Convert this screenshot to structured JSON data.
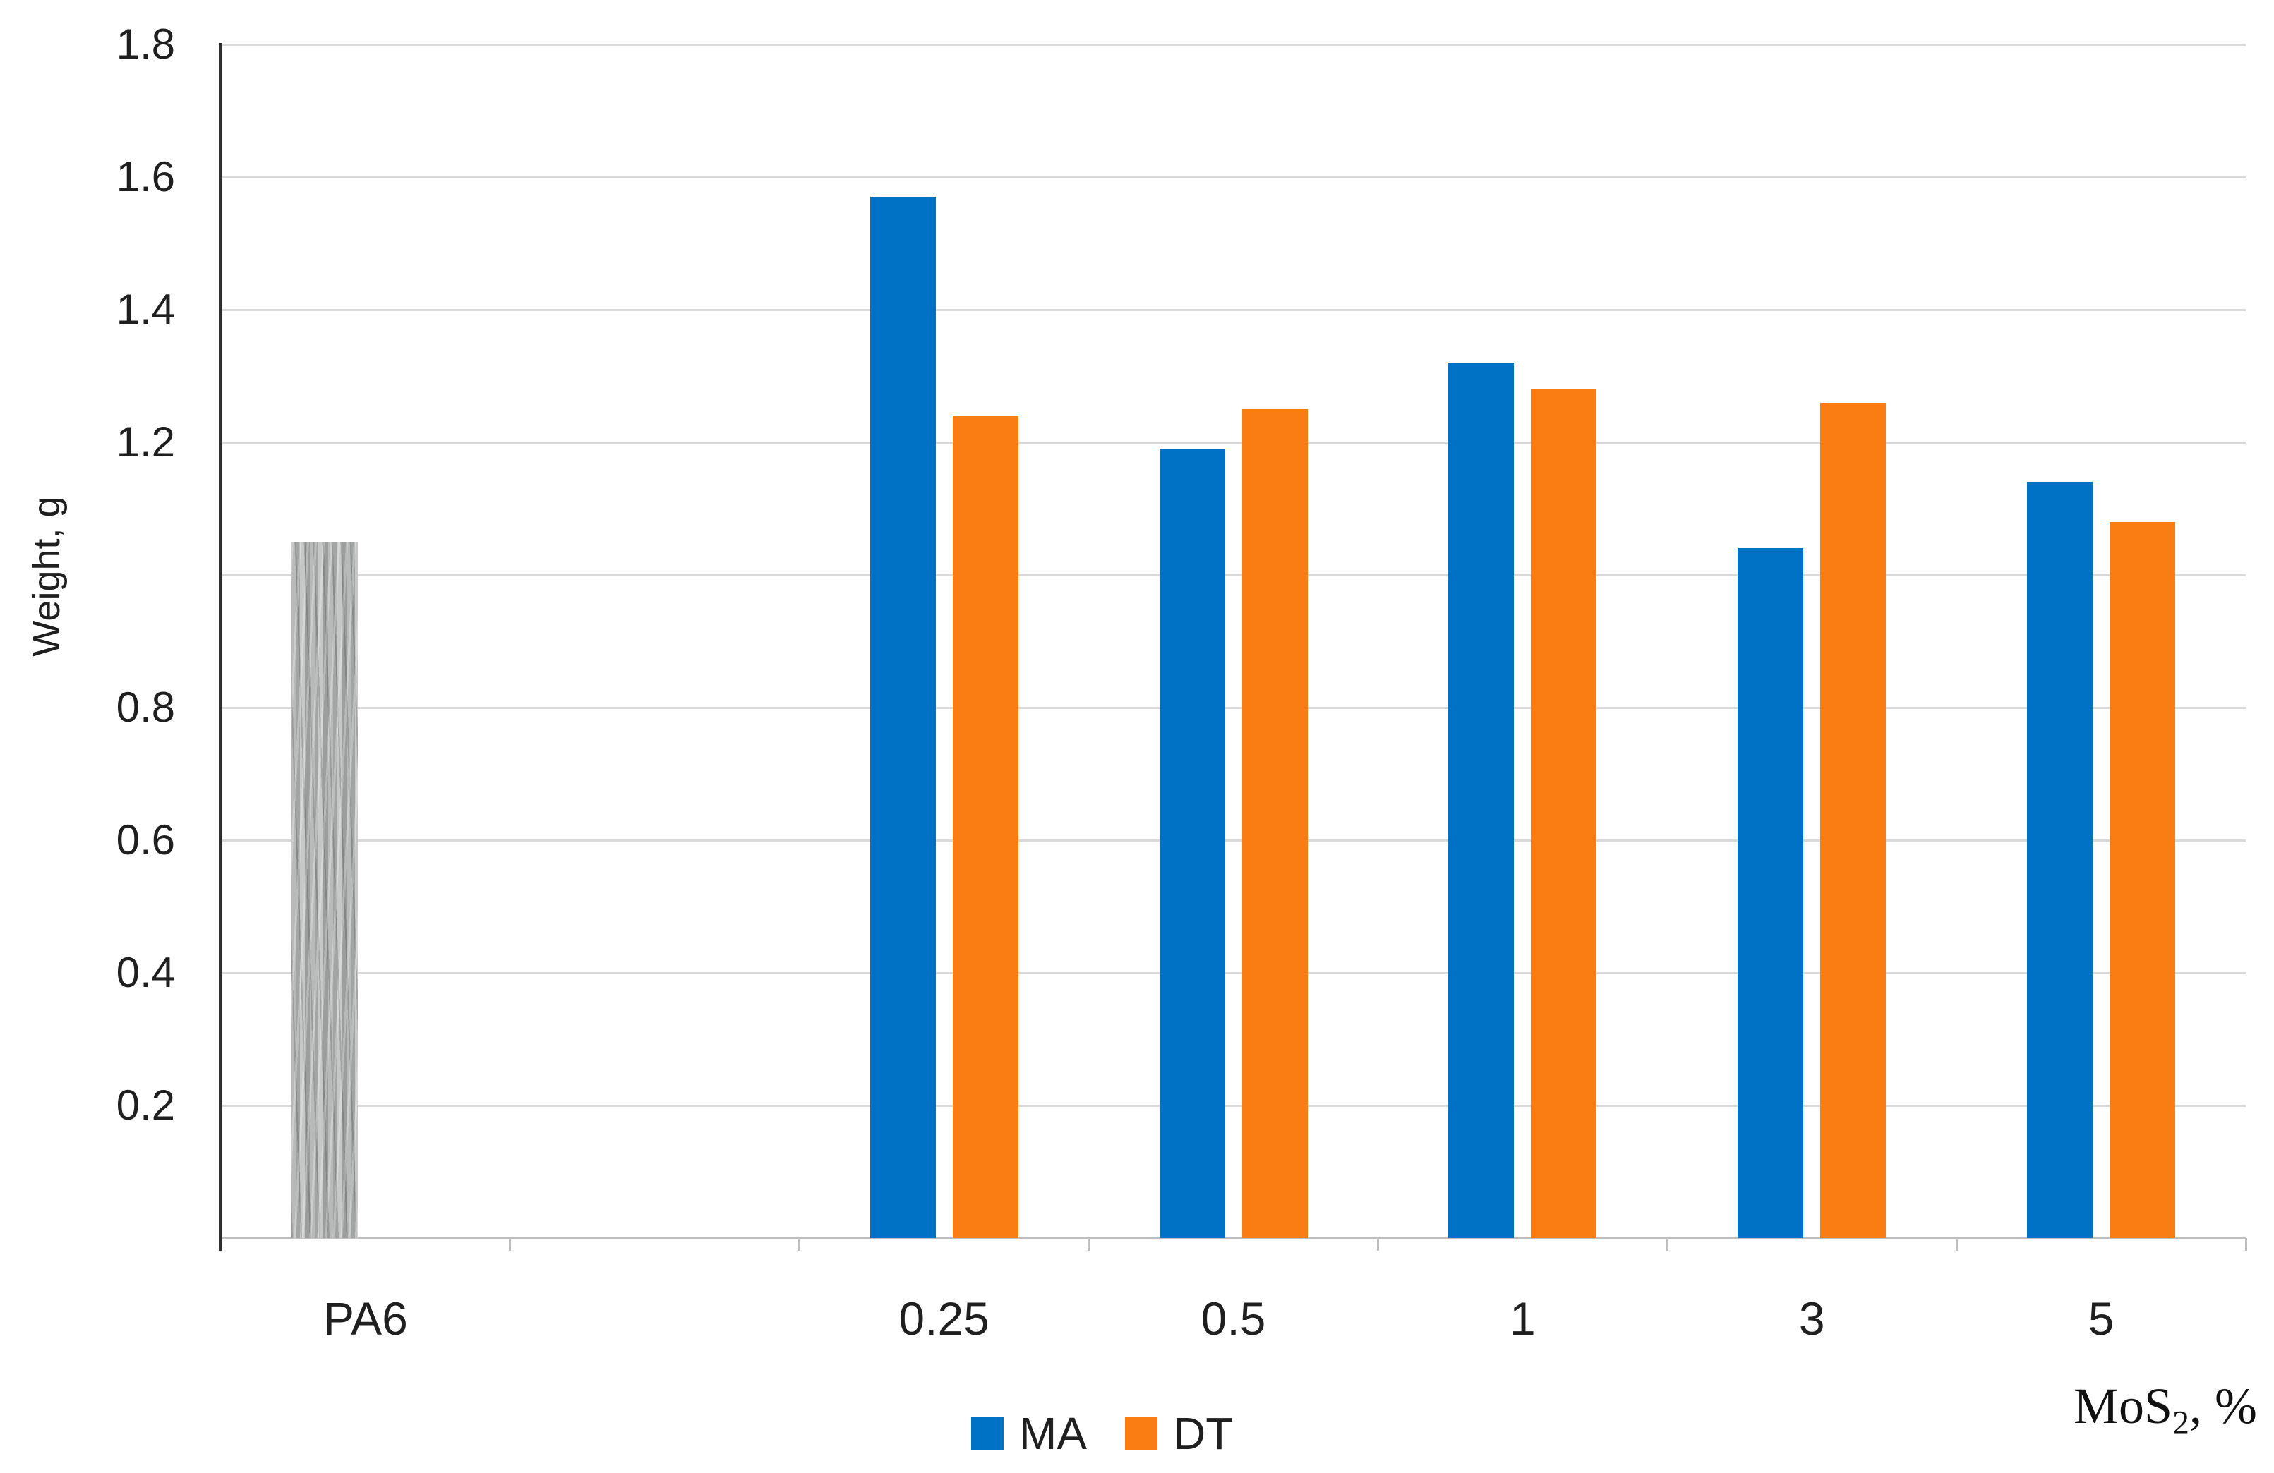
{
  "chart_data": {
    "type": "bar",
    "title": "",
    "ylabel": "Weight, g",
    "xlabel_main": "MoS",
    "xlabel_sub": "2",
    "xlabel_suffix": ", %",
    "ylim": [
      0,
      1.8
    ],
    "y_tick_step": 0.2,
    "grid": true,
    "y_ticks": [
      {
        "label": "1.8",
        "value": 1.8
      },
      {
        "label": "1.6",
        "value": 1.6
      },
      {
        "label": "1.4",
        "value": 1.4
      },
      {
        "label": "1.2",
        "value": 1.2
      },
      {
        "label": "0.8",
        "value": 0.8
      },
      {
        "label": "0.6",
        "value": 0.6
      },
      {
        "label": "0.4",
        "value": 0.4
      },
      {
        "label": "0.2",
        "value": 0.2
      }
    ],
    "total_slots": 7,
    "categories": [
      {
        "label": "PA6",
        "slot": 0
      },
      {
        "label": "0.25",
        "slot": 2
      },
      {
        "label": "0.5",
        "slot": 3
      },
      {
        "label": "1",
        "slot": 4
      },
      {
        "label": "3",
        "slot": 5
      },
      {
        "label": "5",
        "slot": 6
      }
    ],
    "series": [
      {
        "name": "MA",
        "color": "#0072C6",
        "values": [
          null,
          1.57,
          1.19,
          1.32,
          1.04,
          1.14
        ]
      },
      {
        "name": "DT",
        "color": "#FA7D13",
        "values": [
          null,
          1.24,
          1.25,
          1.28,
          1.26,
          1.08
        ]
      }
    ],
    "baseline_bar": {
      "category": "PA6",
      "value": 1.05,
      "style": "gray-textured",
      "base_color": "#ABAEAD"
    },
    "legend": {
      "position": "bottom",
      "entries": [
        "MA",
        "DT"
      ]
    },
    "colors": {
      "gridline": "#D9D9D9",
      "y_axis": "#2F2F2F",
      "x_axis": "#BFBFBF",
      "text": "#1F1F1F"
    }
  }
}
